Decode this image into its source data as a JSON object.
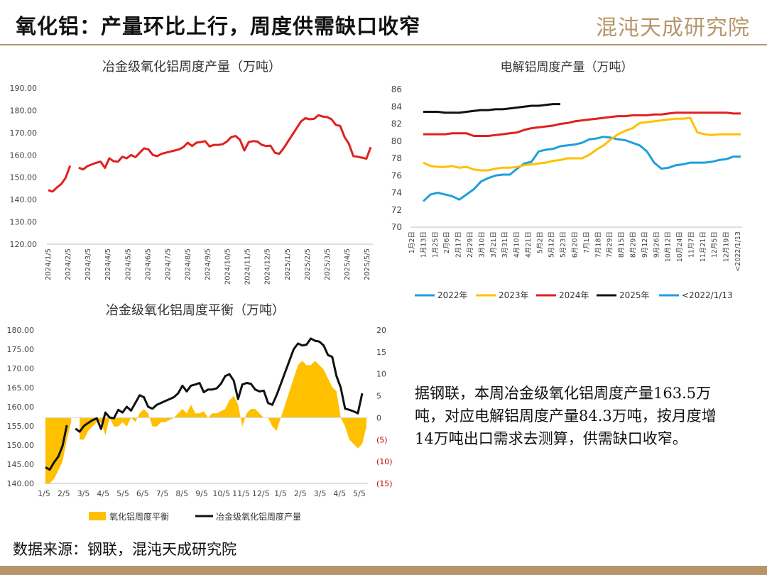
{
  "header": {
    "title": "氧化铝：产量环比上行，周度供需缺口收窄",
    "logo_text": "混沌天成研究院"
  },
  "footer": {
    "source": "数据来源：钢联，混沌天成研究院"
  },
  "commentary": {
    "text": "据钢联，本周冶金级氧化铝周度产量163.5万吨，对应电解铝周度产量84.3万吨，按月度增14万吨出口需求去测算，供需缺口收窄。"
  },
  "colors": {
    "red": "#e0201f",
    "black": "#111111",
    "gold": "#ffc000",
    "blue": "#1ea0dc",
    "tick_red": "#c00000",
    "brand": "#b6956c"
  },
  "chart_data": [
    {
      "type": "line",
      "title": "冶金级氧化铝周度产量（万吨）",
      "ylim": [
        120,
        190
      ],
      "y_ticks": [
        "190.00",
        "180.00",
        "170.00",
        "160.00",
        "150.00",
        "140.00",
        "130.00",
        "120.00"
      ],
      "x_tick_labels": [
        "2024/1/5",
        "2024/2/5",
        "2024/3/5",
        "2024/4/5",
        "2024/5/5",
        "2024/6/5",
        "2024/7/5",
        "2024/8/5",
        "2024/9/5",
        "2024/10/5",
        "2024/11/5",
        "2024/12/5",
        "2025/1/5",
        "2025/2/5",
        "2025/3/5",
        "2025/4/5",
        "2025/5/5"
      ],
      "series": [
        {
          "color": "#e0201f",
          "segments": [
            [
              144.2,
              143.6,
              145.5,
              147.0,
              149.8,
              155.2
            ],
            [
              154.3,
              153.5,
              155.0,
              155.8,
              156.5,
              157.0,
              154.2,
              158.5,
              157.2,
              157.0,
              159.2,
              158.5,
              160.0,
              159.0,
              161.0,
              163.0,
              162.5,
              160.0,
              159.5,
              160.5,
              161.0,
              161.5,
              162.0,
              162.5,
              163.5,
              165.5,
              164.0,
              165.5,
              165.8,
              166.2,
              163.8,
              164.5,
              164.5,
              164.8,
              166.0,
              168.0,
              168.5,
              166.8,
              162.0,
              165.8,
              166.2,
              166.0,
              164.5,
              164.0,
              164.2,
              161.0,
              160.5,
              163.0,
              166.0,
              169.0,
              172.0,
              175.0,
              176.5,
              176.0,
              176.2,
              177.8,
              177.2,
              177.0,
              176.0,
              173.5,
              173.0,
              168.0,
              165.0,
              159.5,
              159.2,
              158.8,
              158.3,
              163.5
            ]
          ]
        }
      ]
    },
    {
      "type": "line",
      "title": "电解铝周度产量（万吨）",
      "ylim": [
        70,
        86
      ],
      "y_ticks": [
        "86",
        "84",
        "82",
        "80",
        "78",
        "76",
        "74",
        "72",
        "70"
      ],
      "x_tick_labels": [
        "1月2日",
        "1月13日",
        "1月25日",
        "2月6日",
        "2月17日",
        "2月29日",
        "3月10日",
        "3月21日",
        "3月31日",
        "4月10日",
        "4月21日",
        "5月2日",
        "5月12日",
        "5月23日",
        "6月20日",
        "7月1日",
        "7月18日",
        "7月29日",
        "8月15日",
        "8月29日",
        "9月12日",
        "9月26日",
        "10月12日",
        "10月24日",
        "11月7日",
        "11月21日",
        "12月5日",
        "12月19日",
        "<2022/1/13"
      ],
      "series": [
        {
          "name": "2022年",
          "color": "#1ea0dc",
          "values": [
            73.0,
            73.8,
            74.0,
            73.8,
            73.6,
            73.2,
            73.8,
            74.4,
            75.3,
            75.7,
            76.0,
            76.1,
            76.1,
            76.8,
            77.4,
            77.6,
            78.8,
            79.0,
            79.1,
            79.4,
            79.5,
            79.6,
            79.8,
            80.2,
            80.3,
            80.5,
            80.4,
            80.2,
            80.1,
            79.8,
            79.5,
            78.8,
            77.5,
            76.8,
            76.9,
            77.2,
            77.3,
            77.5,
            77.5,
            77.5,
            77.6,
            77.8,
            77.9,
            78.2,
            78.2
          ]
        },
        {
          "name": "2023年",
          "color": "#ffc000",
          "values": [
            77.5,
            77.1,
            77.0,
            77.0,
            77.1,
            76.9,
            77.0,
            76.7,
            76.6,
            76.6,
            76.8,
            76.9,
            76.9,
            77.0,
            77.2,
            77.3,
            77.4,
            77.5,
            77.7,
            77.8,
            78.0,
            78.0,
            78.0,
            78.4,
            79.0,
            79.5,
            80.2,
            80.8,
            81.2,
            81.5,
            82.1,
            82.2,
            82.3,
            82.4,
            82.5,
            82.6,
            82.6,
            82.7,
            81.0,
            80.8,
            80.7,
            80.8,
            80.8,
            80.8,
            80.8
          ]
        },
        {
          "name": "2024年",
          "color": "#e0201f",
          "values": [
            80.8,
            80.8,
            80.8,
            80.8,
            80.9,
            80.9,
            80.9,
            80.6,
            80.6,
            80.6,
            80.7,
            80.8,
            80.9,
            81.0,
            81.3,
            81.5,
            81.6,
            81.7,
            81.8,
            82.0,
            82.1,
            82.3,
            82.4,
            82.5,
            82.6,
            82.7,
            82.8,
            82.9,
            82.9,
            83.0,
            83.0,
            83.0,
            83.1,
            83.1,
            83.2,
            83.3,
            83.3,
            83.3,
            83.3,
            83.3,
            83.3,
            83.3,
            83.3,
            83.2,
            83.2
          ]
        },
        {
          "name": "2025年",
          "color": "#111111",
          "values": [
            83.4,
            83.4,
            83.4,
            83.3,
            83.3,
            83.3,
            83.4,
            83.5,
            83.6,
            83.6,
            83.7,
            83.7,
            83.8,
            83.9,
            84.0,
            84.1,
            84.1,
            84.2,
            84.3,
            84.3
          ]
        },
        {
          "name": "<2022/1/13",
          "color": "#1ea0dc",
          "values": []
        }
      ]
    },
    {
      "type": "combo",
      "title": "冶金级氧化铝周度平衡（万吨）",
      "ylim_left": [
        140,
        180
      ],
      "ylim_right": [
        -15,
        20
      ],
      "y_left_ticks": [
        "180.00",
        "175.00",
        "170.00",
        "165.00",
        "160.00",
        "155.00",
        "150.00",
        "145.00",
        "140.00"
      ],
      "y_right_ticks": [
        "20",
        "15",
        "10",
        "5",
        "0",
        "(5)",
        "(10)",
        "(15)"
      ],
      "x_tick_labels": [
        "1/5",
        "2/5",
        "3/5",
        "4/5",
        "5/5",
        "6/5",
        "7/5",
        "8/5",
        "9/5",
        "10/5",
        "11/5",
        "12/5",
        "1/5",
        "2/5",
        "3/5",
        "4/5",
        "5/5"
      ],
      "series": [
        {
          "name": "氧化铝周度平衡",
          "kind": "area",
          "color": "#ffc000",
          "segments": [
            [
              -15,
              -15,
              -14,
              -12,
              -10,
              -5,
              -1
            ],
            [
              -5,
              -5,
              -3,
              -2,
              -1,
              -1,
              -4,
              0,
              -2,
              -2,
              -1,
              -2,
              0,
              -1,
              1,
              2,
              1,
              -2,
              -2,
              -1,
              -1,
              -0.5,
              0,
              1,
              2,
              1,
              3,
              1,
              1,
              1.5,
              0,
              1,
              1,
              1.5,
              2,
              4,
              5,
              3,
              -2,
              1,
              2,
              2,
              1,
              0,
              0,
              -2,
              -3,
              0,
              3,
              6,
              9,
              12,
              13,
              12,
              12,
              13,
              12,
              11,
              9,
              7,
              6,
              0,
              -2,
              -5,
              -6,
              -7,
              -6,
              -2
            ]
          ]
        },
        {
          "name": "冶金级氧化铝周度产量",
          "kind": "line",
          "color": "#111111",
          "segments": [
            [
              144.2,
              143.6,
              145.5,
              147.0,
              149.8,
              155.2
            ],
            [
              154.3,
              153.5,
              155.0,
              155.8,
              156.5,
              157.0,
              154.2,
              158.5,
              157.2,
              157.0,
              159.2,
              158.5,
              160.0,
              159.0,
              161.0,
              163.0,
              162.5,
              160.0,
              159.5,
              160.5,
              161.0,
              161.5,
              162.0,
              162.5,
              163.5,
              165.5,
              164.0,
              165.5,
              165.8,
              166.2,
              163.8,
              164.5,
              164.5,
              164.8,
              166.0,
              168.0,
              168.5,
              166.8,
              162.0,
              165.8,
              166.2,
              166.0,
              164.5,
              164.0,
              164.2,
              161.0,
              160.5,
              163.0,
              166.0,
              169.0,
              172.0,
              175.0,
              176.5,
              176.0,
              176.2,
              177.8,
              177.2,
              177.0,
              176.0,
              173.5,
              173.0,
              168.0,
              165.0,
              159.5,
              159.2,
              158.8,
              158.3,
              163.5
            ]
          ]
        }
      ]
    }
  ]
}
